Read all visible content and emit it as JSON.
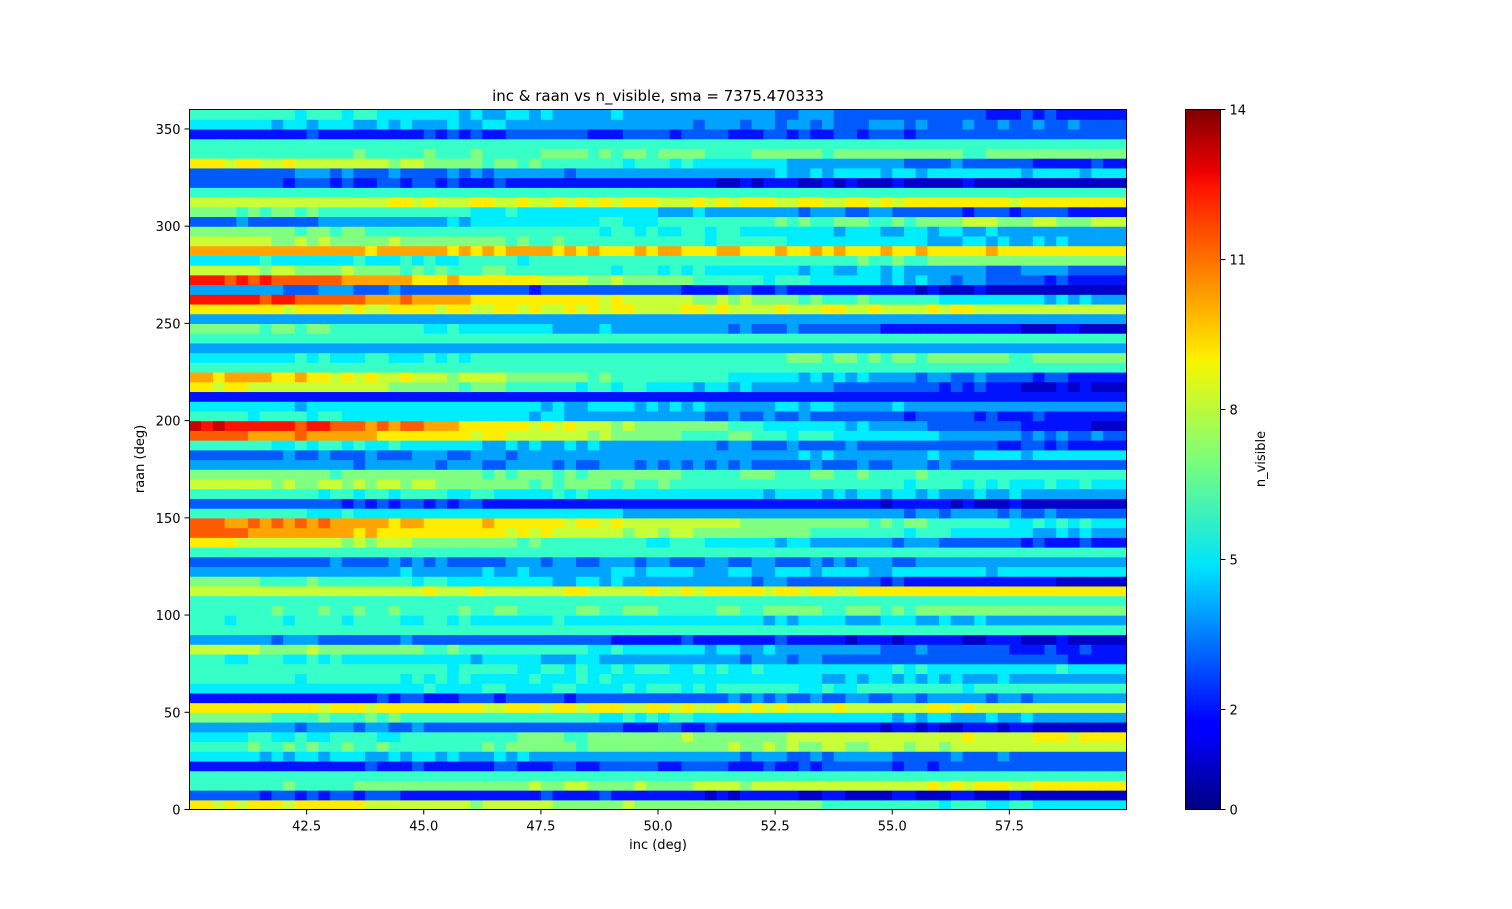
{
  "chart_data": {
    "type": "heatmap",
    "title": "inc & raan vs n_visible, sma = 7375.470333",
    "xlabel": "inc (deg)",
    "ylabel": "raan (deg)",
    "colorbar_label": "n_visible",
    "colormap": "jet",
    "xlim": [
      40,
      60
    ],
    "ylim": [
      0,
      360
    ],
    "clim": [
      0,
      14
    ],
    "x_ticks": [
      42.5,
      45.0,
      47.5,
      50.0,
      52.5,
      55.0,
      57.5
    ],
    "x_tick_labels": [
      "42.5",
      "45.0",
      "47.5",
      "50.0",
      "52.5",
      "55.0",
      "57.5"
    ],
    "y_ticks": [
      0,
      50,
      100,
      150,
      200,
      250,
      300,
      350
    ],
    "y_tick_labels": [
      "0",
      "50",
      "100",
      "150",
      "200",
      "250",
      "300",
      "350"
    ],
    "colorbar_ticks": [
      0,
      2,
      5,
      8,
      11,
      14
    ],
    "colorbar_tick_labels": [
      "0",
      "2",
      "5",
      "8",
      "11",
      "14"
    ],
    "grid": false,
    "colorbar_position": "right",
    "inc_start": 40,
    "inc_step": 0.25,
    "inc_count": 80,
    "raan_start": 0,
    "raan_step": 5,
    "raan_count": 72,
    "rows_start_end": [
      [
        9,
        5
      ],
      [
        3,
        1
      ],
      [
        6,
        9
      ],
      [
        6,
        6
      ],
      [
        2,
        3
      ],
      [
        5,
        3
      ],
      [
        6,
        8
      ],
      [
        5,
        9
      ],
      [
        4,
        1
      ],
      [
        7,
        4
      ],
      [
        9,
        8
      ],
      [
        2,
        4
      ],
      [
        5,
        6
      ],
      [
        6,
        4
      ],
      [
        6,
        5
      ],
      [
        6,
        2
      ],
      [
        8,
        2
      ],
      [
        4,
        1
      ],
      [
        6,
        6
      ],
      [
        6,
        4
      ],
      [
        6,
        7
      ],
      [
        6,
        6
      ],
      [
        8,
        9
      ],
      [
        7,
        1
      ],
      [
        4,
        5
      ],
      [
        3,
        4
      ],
      [
        6,
        6
      ],
      [
        9,
        2
      ],
      [
        11,
        4
      ],
      [
        11,
        5
      ],
      [
        6,
        3
      ],
      [
        3,
        1
      ],
      [
        6,
        4
      ],
      [
        8,
        5
      ],
      [
        7,
        6
      ],
      [
        4,
        3
      ],
      [
        3,
        5
      ],
      [
        6,
        2
      ],
      [
        11,
        3
      ],
      [
        13,
        1
      ],
      [
        6,
        2
      ],
      [
        5,
        4
      ],
      [
        2,
        2
      ],
      [
        9,
        1
      ],
      [
        10,
        2
      ],
      [
        6,
        6
      ],
      [
        5,
        7
      ],
      [
        4,
        4
      ],
      [
        6,
        6
      ],
      [
        7,
        1
      ],
      [
        4,
        4
      ],
      [
        9,
        8
      ],
      [
        12,
        4
      ],
      [
        4,
        1
      ],
      [
        12,
        2
      ],
      [
        8,
        3
      ],
      [
        5,
        7
      ],
      [
        10,
        9
      ],
      [
        8,
        4
      ],
      [
        7,
        4
      ],
      [
        3,
        8
      ],
      [
        7,
        2
      ],
      [
        8,
        9
      ],
      [
        6,
        6
      ],
      [
        3,
        1
      ],
      [
        3,
        5
      ],
      [
        9,
        2
      ],
      [
        6,
        7
      ],
      [
        6,
        6
      ],
      [
        2,
        3
      ],
      [
        5,
        3
      ],
      [
        6,
        2
      ]
    ]
  }
}
